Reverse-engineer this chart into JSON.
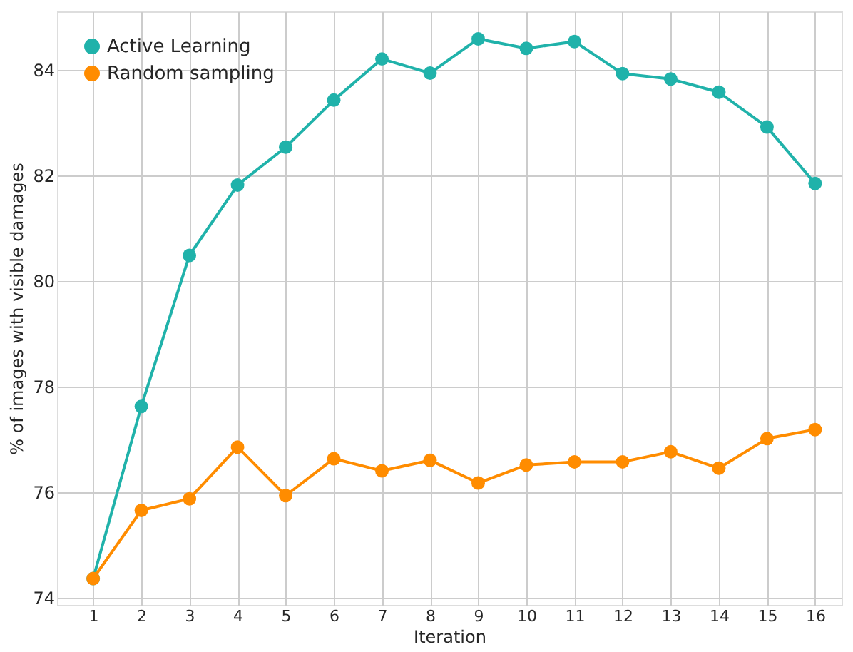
{
  "chart_data": {
    "type": "line",
    "xlabel": "Iteration",
    "ylabel": "% of images with visible damages",
    "x": [
      1,
      2,
      3,
      4,
      5,
      6,
      7,
      8,
      9,
      10,
      11,
      12,
      13,
      14,
      15,
      16
    ],
    "series": [
      {
        "name": "Active Learning",
        "color": "#20b2aa",
        "values": [
          74.37,
          77.63,
          80.49,
          81.82,
          82.54,
          83.43,
          84.21,
          83.94,
          84.59,
          84.41,
          84.54,
          83.93,
          83.83,
          83.58,
          82.92,
          81.85
        ]
      },
      {
        "name": "Random sampling",
        "color": "#ff8c00",
        "values": [
          74.37,
          75.66,
          75.88,
          76.86,
          75.94,
          76.64,
          76.41,
          76.61,
          76.18,
          76.52,
          76.58,
          76.58,
          76.77,
          76.46,
          77.02,
          77.19
        ]
      }
    ],
    "xlim": [
      0.25,
      16.55
    ],
    "xticks": [
      1,
      2,
      3,
      4,
      5,
      6,
      7,
      8,
      9,
      10,
      11,
      12,
      13,
      14,
      15,
      16
    ],
    "ylim": [
      73.87,
      85.11
    ],
    "yticks": [
      74,
      76,
      78,
      80,
      82,
      84
    ],
    "grid": true,
    "legend": "top left",
    "marker": "circle",
    "line_style": "solid"
  }
}
